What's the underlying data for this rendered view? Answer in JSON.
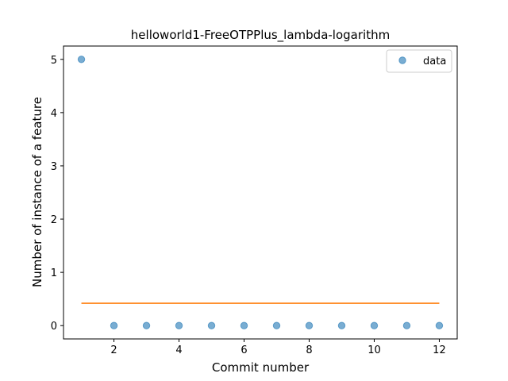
{
  "chart_data": {
    "type": "scatter",
    "title": "helloworld1-FreeOTPPlus_lambda-logarithm",
    "xlabel": "Commit number",
    "ylabel": "Number of instance of a feature",
    "xlim": [
      0.45,
      12.55
    ],
    "ylim": [
      -0.25,
      5.25
    ],
    "xticks": [
      2,
      4,
      6,
      8,
      10,
      12
    ],
    "yticks": [
      0,
      1,
      2,
      3,
      4,
      5
    ],
    "grid": false,
    "legend_position": "top-right",
    "series": [
      {
        "name": "data",
        "kind": "scatter",
        "color": "#1f77b4",
        "x": [
          1,
          2,
          3,
          4,
          5,
          6,
          7,
          8,
          9,
          10,
          11,
          12
        ],
        "y": [
          5,
          0,
          0,
          0,
          0,
          0,
          0,
          0,
          0,
          0,
          0,
          0
        ]
      },
      {
        "kind": "line",
        "color": "#ff7f0e",
        "x": [
          1,
          12
        ],
        "y": [
          0.42,
          0.42
        ]
      }
    ]
  }
}
